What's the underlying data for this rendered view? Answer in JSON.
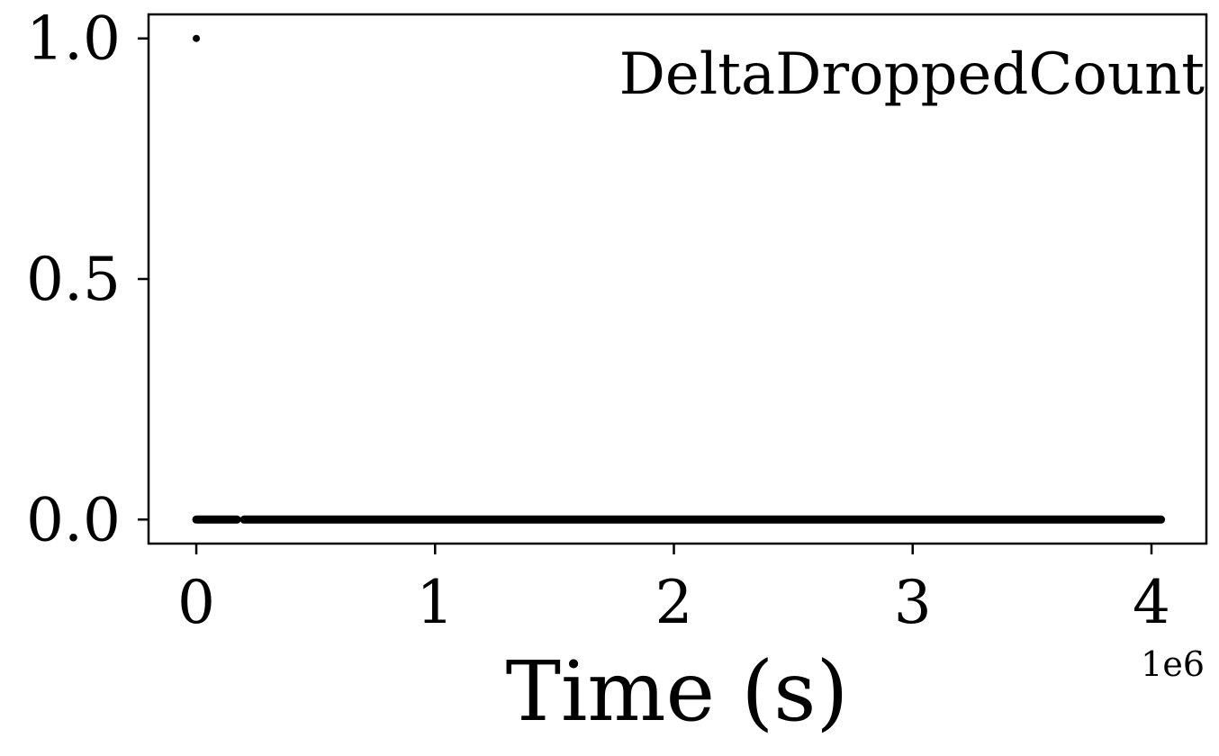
{
  "chart_data": {
    "type": "scatter",
    "title": "",
    "xlabel": "Time (s)",
    "ylabel": "",
    "x_offset_label": "1e6",
    "annotation": "DeltaDroppedCount",
    "xlim": [
      -0.2,
      4.23
    ],
    "ylim": [
      -0.05,
      1.05
    ],
    "x_ticks": [
      0,
      1,
      2,
      3,
      4
    ],
    "x_tick_labels": [
      "0",
      "1",
      "2",
      "3",
      "4"
    ],
    "y_ticks": [
      0.0,
      0.5,
      1.0
    ],
    "y_tick_labels": [
      "0.0",
      "0.5",
      "1.0"
    ],
    "grid": false,
    "marker_color": "#000000",
    "series": [
      {
        "points": [
          [
            0.0,
            1.0
          ]
        ],
        "segments": [
          {
            "x_start": 0.0,
            "x_end": 0.17,
            "y": 0.0
          },
          {
            "x_start": 0.2,
            "x_end": 4.04,
            "y": 0.0
          }
        ]
      }
    ]
  }
}
